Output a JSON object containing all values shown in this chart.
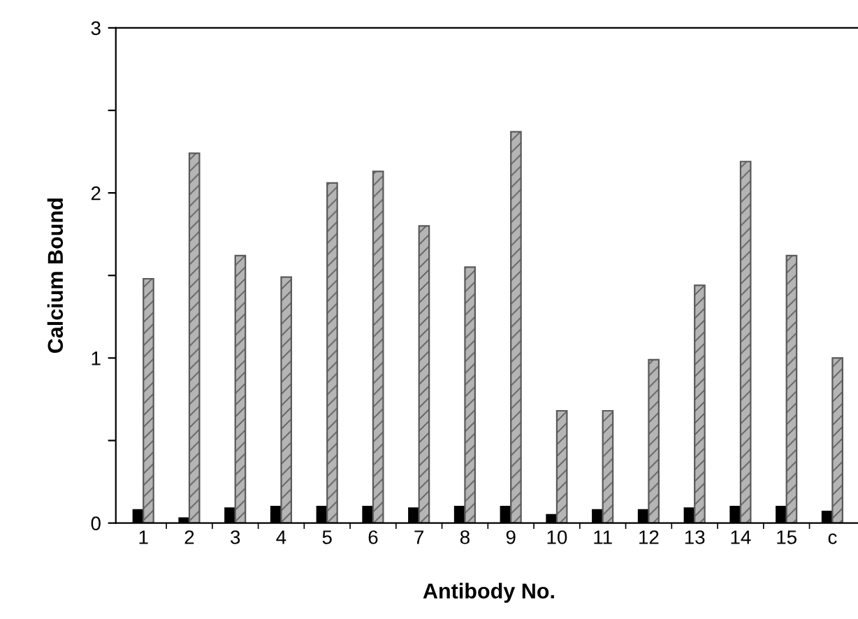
{
  "chart_data": {
    "type": "bar",
    "xlabel": "Antibody No.",
    "ylabel": "Calcium Bound",
    "categories": [
      "1",
      "2",
      "3",
      "4",
      "5",
      "6",
      "7",
      "8",
      "9",
      "10",
      "11",
      "12",
      "13",
      "14",
      "15",
      "c"
    ],
    "series": [
      {
        "color": "#000000",
        "values": [
          0.08,
          0.03,
          0.09,
          0.1,
          0.1,
          0.1,
          0.09,
          0.1,
          0.1,
          0.05,
          0.08,
          0.08,
          0.09,
          0.1,
          0.1,
          0.07
        ]
      },
      {
        "color": "#5a5a5a",
        "values": [
          1.48,
          2.24,
          1.62,
          1.49,
          2.06,
          2.13,
          1.8,
          1.55,
          2.37,
          0.68,
          0.68,
          0.99,
          1.44,
          2.19,
          1.62,
          1.0
        ]
      }
    ],
    "ylim": [
      0,
      3
    ],
    "yticks": [
      0,
      {
        "value": 0.5,
        "label": null
      },
      1,
      {
        "value": 1.5,
        "label": null
      },
      2,
      {
        "value": 2.5,
        "label": null
      },
      3
    ],
    "grid": false,
    "legend": false
  }
}
